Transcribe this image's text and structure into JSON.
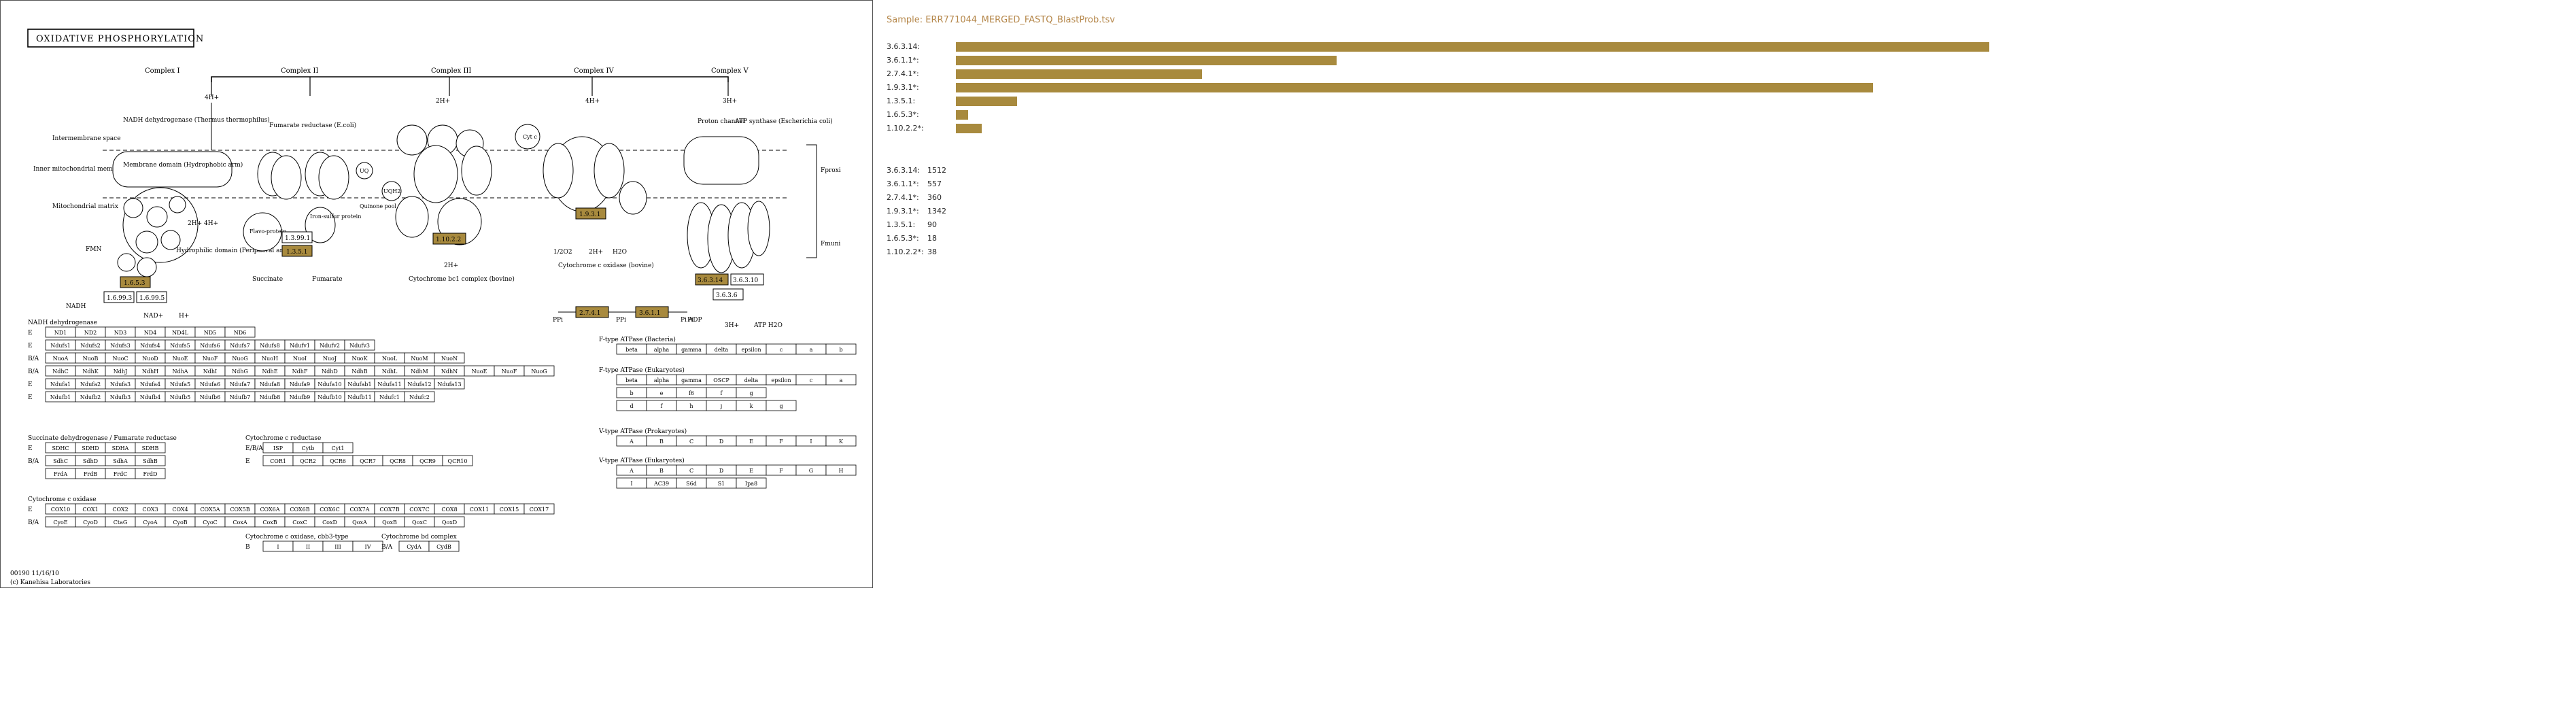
{
  "map": {
    "title": "OXIDATIVE PHOSPHORYLATION",
    "footer_id": "00190 11/16/10",
    "footer_copyright": "(c) Kanehisa Laboratories",
    "accent_enzyme_color": "#a88a3e",
    "complexes": [
      "Complex I",
      "Complex II",
      "Complex III",
      "Complex IV",
      "Complex V"
    ],
    "labels": {
      "intermembrane": "Intermembrane space",
      "inner_membrane": "Inner mitochondrial membrane",
      "matrix": "Mitochondrial matrix",
      "nadh_dehydrogenase": "NADH dehydrogenase (Thermus thermophilus)",
      "membrane_domain": "Membrane domain (Hydrophobic arm)",
      "peripheral_arm": "Hydrophilic domain (Peripheral arm)",
      "fumarate_reductase": "Fumarate reductase (E.coli)",
      "flavo_protein": "Flavo-protein",
      "iron_sulfur": "Iron-sulfur protein",
      "quinone_pool": "Quinone pool",
      "succinate": "Succinate",
      "fumarate": "Fumarate",
      "cytochrome_bc1": "Cytochrome bc1 complex (bovine)",
      "cytochrome_c_oxidase_bovine": "Cytochrome c oxidase (bovine)",
      "atp_synthase": "ATP synthase (Escherichia coli)",
      "proton_channel": "Proton channel",
      "fmn": "FMN",
      "nadh": "NADH",
      "nad": "NAD+",
      "h": "H+",
      "four_h": "4H+",
      "two_h_four_h": "2H+ 4H+",
      "two_h": "2H+",
      "two_h_plus": "2H+",
      "ubiquinone": "UQ",
      "ubiquinol": "UQH2",
      "cyt_c": "Cyt c",
      "o2": "1/2O2",
      "h2o": "H2O",
      "ppi": "PPi",
      "pi": "Pi",
      "pi_adp": "Pi ADP",
      "atp_h2o": "ATP H2O",
      "three_h": "3H+",
      "fproxi": "Fproxi",
      "fmuni": "Fmuni"
    },
    "ec_boxes": [
      {
        "id": "1.6.5.3",
        "highlight": true
      },
      {
        "id": "1.6.99.3",
        "highlight": false
      },
      {
        "id": "1.6.99.5",
        "highlight": false
      },
      {
        "id": "1.3.99.1",
        "highlight": false
      },
      {
        "id": "1.3.5.1",
        "highlight": true
      },
      {
        "id": "1.10.2.2",
        "highlight": true
      },
      {
        "id": "1.9.3.1",
        "highlight": true
      },
      {
        "id": "3.6.3.14",
        "highlight": true
      },
      {
        "id": "3.6.3.10",
        "highlight": false
      },
      {
        "id": "3.6.3.6",
        "highlight": false
      },
      {
        "id": "2.7.4.1",
        "highlight": true
      },
      {
        "id": "3.6.1.1",
        "highlight": true
      }
    ],
    "gene_tables": [
      {
        "title": "NADH dehydrogenase",
        "rows": [
          {
            "tag": "E",
            "cells": [
              "ND1",
              "ND2",
              "ND3",
              "ND4",
              "ND4L",
              "ND5",
              "ND6"
            ]
          },
          {
            "tag": "E",
            "cells": [
              "Ndufs1",
              "Ndufs2",
              "Ndufs3",
              "Ndufs4",
              "Ndufs5",
              "Ndufs6",
              "Ndufs7",
              "Ndufs8",
              "Ndufv1",
              "Ndufv2",
              "Ndufv3"
            ]
          },
          {
            "tag": "B/A",
            "cells": [
              "NuoA",
              "NuoB",
              "NuoC",
              "NuoD",
              "NuoE",
              "NuoF",
              "NuoG",
              "NuoH",
              "NuoI",
              "NuoJ",
              "NuoK",
              "NuoL",
              "NuoM",
              "NuoN"
            ]
          },
          {
            "tag": "B/A",
            "cells": [
              "NdhC",
              "NdhK",
              "NdhJ",
              "NdhH",
              "NdhA",
              "NdhI",
              "NdhG",
              "NdhE",
              "NdhF",
              "NdhD",
              "NdhB",
              "NdhL",
              "NdhM",
              "NdhN",
              "NuoE",
              "NuoF",
              "NuoG"
            ]
          },
          {
            "tag": "E",
            "cells": [
              "Ndufa1",
              "Ndufa2",
              "Ndufa3",
              "Ndufa4",
              "Ndufa5",
              "Ndufa6",
              "Ndufa7",
              "Ndufa8",
              "Ndufa9",
              "Ndufa10",
              "Ndufab1",
              "Ndufa11",
              "Ndufa12",
              "Ndufa13"
            ]
          },
          {
            "tag": "E",
            "cells": [
              "Ndufb1",
              "Ndufb2",
              "Ndufb3",
              "Ndufb4",
              "Ndufb5",
              "Ndufb6",
              "Ndufb7",
              "Ndufb8",
              "Ndufb9",
              "Ndufb10",
              "Ndufb11",
              "Ndufc1",
              "Ndufc2"
            ]
          }
        ]
      },
      {
        "title": "Succinate dehydrogenase / Fumarate reductase",
        "rows": [
          {
            "tag": "E",
            "cells": [
              "SDHC",
              "SDHD",
              "SDHA",
              "SDHB"
            ]
          },
          {
            "tag": "B/A",
            "cells": [
              "SdhC",
              "SdhD",
              "SdhA",
              "SdhB"
            ]
          },
          {
            "tag": "",
            "cells": [
              "FrdA",
              "FrdB",
              "FrdC",
              "FrdD"
            ]
          }
        ]
      },
      {
        "title": "Cytochrome c reductase",
        "rows": [
          {
            "tag": "E/B/A",
            "cells": [
              "ISP",
              "Cytb",
              "Cyt1"
            ]
          },
          {
            "tag": "E",
            "cells": [
              "COR1",
              "QCR2",
              "QCR6",
              "QCR7",
              "QCR8",
              "QCR9",
              "QCR10"
            ]
          }
        ]
      },
      {
        "title": "Cytochrome c oxidase",
        "rows": [
          {
            "tag": "E",
            "cells": [
              "COX10",
              "COX1",
              "COX2",
              "COX3",
              "COX4",
              "COX5A",
              "COX5B",
              "COX6A",
              "COX6B",
              "COX6C",
              "COX7A",
              "COX7B",
              "COX7C",
              "COX8",
              "COX11",
              "COX15",
              "COX17"
            ]
          },
          {
            "tag": "B/A",
            "cells": [
              "CyoE",
              "CyoD",
              "CtaG",
              "CyoA",
              "CyoB",
              "CyoC",
              "CoxA",
              "CoxB",
              "CoxC",
              "CoxD",
              "QoxA",
              "QoxB",
              "QoxC",
              "QoxD"
            ]
          }
        ]
      },
      {
        "title": "Cytochrome c oxidase, cbb3-type",
        "rows": [
          {
            "tag": "B",
            "cells": [
              "I",
              "II",
              "III",
              "IV"
            ]
          }
        ]
      },
      {
        "title": "Cytochrome bd complex",
        "rows": [
          {
            "tag": "B/A",
            "cells": [
              "CydA",
              "CydB"
            ]
          }
        ]
      },
      {
        "title": "F-type ATPase (Bacteria)",
        "rows": [
          {
            "tag": "",
            "cells": [
              "beta",
              "alpha",
              "gamma",
              "delta",
              "epsilon",
              "c",
              "a",
              "b"
            ]
          }
        ]
      },
      {
        "title": "F-type ATPase (Eukaryotes)",
        "rows": [
          {
            "tag": "",
            "cells": [
              "beta",
              "alpha",
              "gamma",
              "OSCP",
              "delta",
              "epsilon",
              "c",
              "a"
            ]
          },
          {
            "tag": "",
            "cells": [
              "b",
              "e",
              "f6",
              "f",
              "g"
            ]
          },
          {
            "tag": "",
            "cells": [
              "d",
              "f",
              "h",
              "j",
              "k",
              "g"
            ]
          }
        ]
      },
      {
        "title": "V-type ATPase (Prokaryotes)",
        "rows": [
          {
            "tag": "",
            "cells": [
              "A",
              "B",
              "C",
              "D",
              "E",
              "F",
              "I",
              "K"
            ]
          }
        ]
      },
      {
        "title": "V-type ATPase (Eukaryotes)",
        "rows": [
          {
            "tag": "",
            "cells": [
              "A",
              "B",
              "C",
              "D",
              "E",
              "F",
              "G",
              "H"
            ]
          },
          {
            "tag": "",
            "cells": [
              "I",
              "AC39",
              "S6d",
              "S1",
              "Ipa8"
            ]
          }
        ]
      }
    ]
  },
  "chart_data": {
    "type": "bar",
    "title": "Sample: ERR771044_MERGED_FASTQ_BlastProb.tsv",
    "categories": [
      "3.6.3.14:",
      "3.6.1.1*:",
      "2.7.4.1*:",
      "1.9.3.1*:",
      "1.3.5.1:",
      "1.6.5.3*:",
      "1.10.2.2*:"
    ],
    "values": [
      1512,
      557,
      360,
      1342,
      90,
      18,
      38
    ],
    "bar_color": "#a88a3e",
    "orientation": "horizontal"
  },
  "counts": [
    {
      "label": "3.6.3.14:",
      "value": "1512"
    },
    {
      "label": "3.6.1.1*:",
      "value": "557"
    },
    {
      "label": "2.7.4.1*:",
      "value": "360"
    },
    {
      "label": "1.9.3.1*:",
      "value": "1342"
    },
    {
      "label": "1.3.5.1:",
      "value": "90"
    },
    {
      "label": "1.6.5.3*:",
      "value": "18"
    },
    {
      "label": "1.10.2.2*:",
      "value": "38"
    }
  ]
}
